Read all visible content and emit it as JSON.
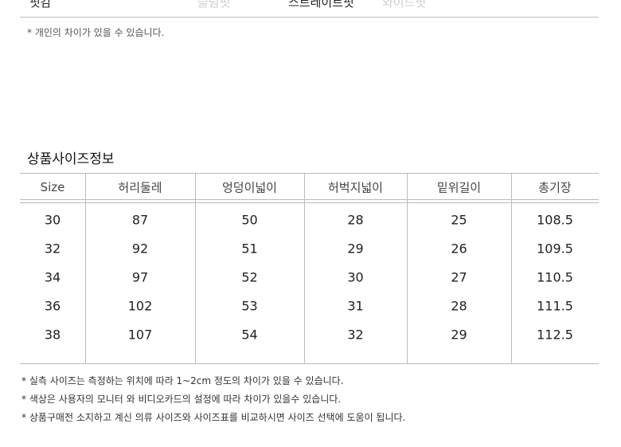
{
  "fit": {
    "label": "핏감",
    "options": [
      "슬림핏",
      "스트레이트핏",
      "와이드핏"
    ],
    "note": "* 개인의 차이가 있을 수 있습니다."
  },
  "size_info": {
    "title": "상품사이즈정보",
    "table": {
      "headers": [
        "Size",
        "허리둘레",
        "엉덩이넓이",
        "허벅지넓이",
        "밑위길이",
        "총기장"
      ],
      "rows": [
        [
          30,
          87,
          50,
          28,
          25,
          108.5
        ],
        [
          32,
          92,
          51,
          29,
          26,
          109.5
        ],
        [
          34,
          97,
          52,
          30,
          27,
          110.5
        ],
        [
          36,
          102,
          53,
          31,
          28,
          111.5
        ],
        [
          38,
          107,
          54,
          32,
          29,
          112.5
        ]
      ]
    },
    "notes": [
      "* 실측 사이즈는 측정하는 위치에 따라 1~2cm 정도의 차이가 있을 수 있습니다.",
      "* 색상은 사용자의 모니터 와 비디오카드의 설정에 따라 차이가 있을수 있습니다.",
      "* 상품구매전 소지하고 계신 의류 사이즈와 사이즈표를 비교하시면 사이즈 선택에 도움이 됩니다."
    ]
  }
}
